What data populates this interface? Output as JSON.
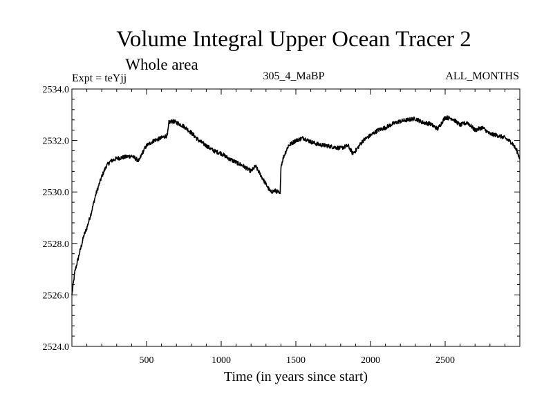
{
  "chart_data": {
    "type": "line",
    "title": "Volume Integral Upper Ocean Tracer 2",
    "subtitle": "Whole area",
    "info_left": "Expt = teYjj",
    "info_center": "305_4_MaBP",
    "info_right": "ALL_MONTHS",
    "xlabel": "Time (in years since start)",
    "ylabel": "",
    "xlim": [
      0,
      3000
    ],
    "ylim": [
      2524.0,
      2534.0
    ],
    "x_ticks": [
      500,
      1000,
      1500,
      2000,
      2500
    ],
    "x_tick_labels": [
      "500",
      "1000",
      "1500",
      "2000",
      "2500"
    ],
    "y_ticks": [
      2524,
      2526,
      2528,
      2530,
      2532,
      2534
    ],
    "y_tick_labels": [
      "2524.0",
      "2526.0",
      "2528.0",
      "2530.0",
      "2532.0",
      "2534.0"
    ],
    "series": [
      {
        "name": "Volume Integral Upper Ocean Tracer 2",
        "color": "#000000",
        "x": [
          0,
          20,
          50,
          80,
          100,
          130,
          160,
          200,
          230,
          260,
          300,
          350,
          400,
          450,
          470,
          500,
          550,
          600,
          640,
          650,
          670,
          700,
          750,
          800,
          850,
          900,
          950,
          1000,
          1050,
          1100,
          1150,
          1200,
          1230,
          1260,
          1300,
          1330,
          1360,
          1380,
          1395,
          1400,
          1420,
          1450,
          1500,
          1550,
          1600,
          1650,
          1700,
          1750,
          1800,
          1850,
          1880,
          1900,
          1950,
          2000,
          2050,
          2100,
          2150,
          2200,
          2250,
          2300,
          2350,
          2400,
          2450,
          2500,
          2550,
          2600,
          2650,
          2700,
          2750,
          2800,
          2850,
          2900,
          2950,
          2980,
          3000
        ],
        "y": [
          2526.0,
          2526.9,
          2527.6,
          2528.3,
          2528.6,
          2529.2,
          2529.9,
          2530.6,
          2531.0,
          2531.2,
          2531.3,
          2531.35,
          2531.4,
          2531.2,
          2531.5,
          2531.8,
          2532.0,
          2532.1,
          2532.2,
          2532.7,
          2532.75,
          2532.7,
          2532.55,
          2532.3,
          2532.0,
          2531.8,
          2531.6,
          2531.5,
          2531.3,
          2531.15,
          2531.0,
          2530.8,
          2531.0,
          2530.7,
          2530.3,
          2530.0,
          2530.05,
          2530.0,
          2529.9,
          2531.0,
          2531.4,
          2531.8,
          2532.0,
          2532.1,
          2531.95,
          2531.85,
          2531.8,
          2531.75,
          2531.7,
          2531.8,
          2531.5,
          2531.6,
          2532.0,
          2532.2,
          2532.4,
          2532.5,
          2532.65,
          2532.75,
          2532.8,
          2532.85,
          2532.7,
          2532.65,
          2532.45,
          2532.9,
          2532.85,
          2532.6,
          2532.7,
          2532.4,
          2532.5,
          2532.25,
          2532.2,
          2532.1,
          2531.9,
          2531.6,
          2531.3
        ]
      }
    ]
  }
}
